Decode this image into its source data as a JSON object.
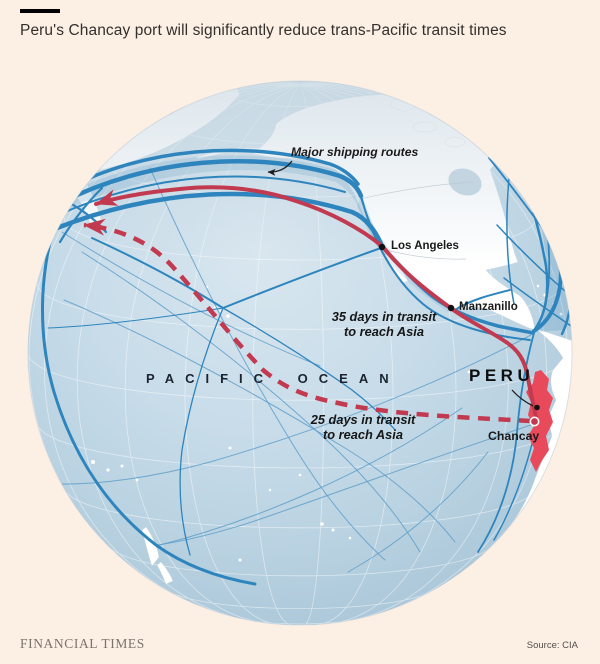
{
  "title": "Peru's Chancay port will significantly reduce trans-Pacific transit times",
  "map": {
    "routes_annotation": "Major shipping routes",
    "ocean_label": "PACIFIC OCEAN",
    "country_label": "PERU",
    "cities": {
      "los_angeles": "Los Angeles",
      "manzanillo": "Manzanillo",
      "chancay": "Chancay"
    },
    "transit_notes": {
      "via_manzanillo": {
        "line1": "35 days in transit",
        "line2": "to reach Asia"
      },
      "via_chancay": {
        "line1": "25 days in transit",
        "line2": "to reach Asia"
      }
    }
  },
  "footer": {
    "brand": "FINANCIAL TIMES",
    "source": "Source: CIA"
  },
  "colors": {
    "background": "#fcefe4",
    "ocean": "#c6dbe7",
    "land": "#ffffff",
    "shipping_route_blue": "#2e85bd",
    "highlight_route_red": "#c23a4f",
    "peru_fill_red": "#e8495b",
    "title_text": "#33302e"
  }
}
